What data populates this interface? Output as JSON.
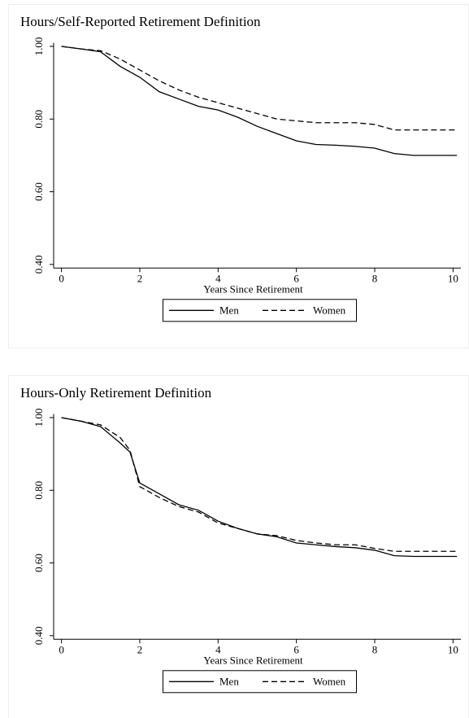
{
  "chart_data": [
    {
      "type": "line",
      "title": "Hours/Self-Reported Retirement Definition",
      "xlabel": "Years Since Retirement",
      "x": [
        0,
        0.5,
        1,
        1.5,
        2,
        2.5,
        3,
        3.5,
        4,
        4.5,
        5,
        5.5,
        6,
        6.5,
        7,
        7.5,
        8,
        8.5,
        9,
        10.1
      ],
      "series": [
        {
          "name": "Men",
          "color": "#000000",
          "style": "solid",
          "values": [
            1.0,
            0.993,
            0.985,
            0.945,
            0.915,
            0.875,
            0.855,
            0.835,
            0.825,
            0.805,
            0.78,
            0.76,
            0.74,
            0.73,
            0.728,
            0.725,
            0.72,
            0.705,
            0.7,
            0.7
          ]
        },
        {
          "name": "Women",
          "color": "#000000",
          "style": "dashed",
          "values": [
            1.0,
            0.993,
            0.988,
            0.965,
            0.935,
            0.905,
            0.88,
            0.86,
            0.845,
            0.83,
            0.815,
            0.8,
            0.795,
            0.79,
            0.79,
            0.79,
            0.785,
            0.77,
            0.77,
            0.77
          ]
        }
      ],
      "xlim": [
        -0.2,
        10.2
      ],
      "xticks": [
        0,
        2,
        4,
        6,
        8,
        10
      ],
      "ylim": [
        0.39,
        1.01
      ],
      "yticks": [
        {
          "value": 0.4,
          "label": "0.40"
        },
        {
          "value": 0.6,
          "label": "0.60"
        },
        {
          "value": 0.8,
          "label": "0.80"
        },
        {
          "value": 1,
          "label": "1.00"
        }
      ],
      "grid": false,
      "legend": "bottom"
    },
    {
      "type": "line",
      "title": "Hours-Only Retirement Definition",
      "xlabel": "Years Since Retirement",
      "x": [
        0,
        0.5,
        1,
        1.5,
        1.75,
        2,
        2.5,
        3,
        3.5,
        4,
        4.5,
        5,
        5.5,
        6,
        6.5,
        7,
        7.5,
        8,
        8.5,
        9,
        10.1
      ],
      "series": [
        {
          "name": "Men",
          "color": "#000000",
          "style": "solid",
          "values": [
            1.0,
            0.99,
            0.975,
            0.93,
            0.905,
            0.82,
            0.79,
            0.76,
            0.745,
            0.715,
            0.695,
            0.68,
            0.672,
            0.655,
            0.65,
            0.645,
            0.642,
            0.635,
            0.62,
            0.618,
            0.618
          ]
        },
        {
          "name": "Women",
          "color": "#000000",
          "style": "dashed",
          "values": [
            1.0,
            0.99,
            0.98,
            0.945,
            0.91,
            0.81,
            0.78,
            0.755,
            0.74,
            0.71,
            0.695,
            0.68,
            0.675,
            0.662,
            0.655,
            0.65,
            0.65,
            0.64,
            0.632,
            0.632,
            0.632
          ]
        }
      ],
      "xlim": [
        -0.2,
        10.2
      ],
      "xticks": [
        0,
        2,
        4,
        6,
        8,
        10
      ],
      "ylim": [
        0.39,
        1.01
      ],
      "yticks": [
        {
          "value": 0.4,
          "label": "0.40"
        },
        {
          "value": 0.6,
          "label": "0.60"
        },
        {
          "value": 0.8,
          "label": "0.80"
        },
        {
          "value": 1,
          "label": "1.00"
        }
      ],
      "grid": false,
      "legend": "bottom"
    }
  ]
}
